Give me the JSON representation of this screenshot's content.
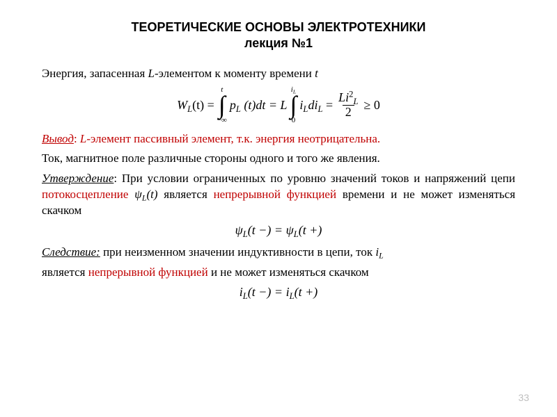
{
  "title": {
    "line1": "ТЕОРЕТИЧЕСКИЕ ОСНОВЫ ЭЛЕКТРОТЕХНИКИ",
    "line2": "лекция №1"
  },
  "p1_pre": "Энергия, запасенная ",
  "p1_L": "L",
  "p1_post": "-элементом к моменту  времени ",
  "p1_t": "t",
  "eq1": {
    "lhs": "W",
    "lhs_sub": "L",
    "arg": "(t) = ",
    "int1_top": "t",
    "int1_bot": "−∞",
    "int1_body_a": "p",
    "int1_body_sub": "L",
    "int1_body_b": " (t)dt = L",
    "int2_top_a": "i",
    "int2_top_sub": "L",
    "int2_bot": "0",
    "int2_body_a": "i",
    "int2_body_sub": "L",
    "int2_body_b": "di",
    "int2_body_sub2": "L",
    "eq": " = ",
    "frac_num_a": "Li",
    "frac_num_sup": "2",
    "frac_num_sub": "L",
    "frac_den": "2",
    "tail": " ≥ 0"
  },
  "p2_vyvod": "Вывод",
  "p2_sep": ": ",
  "p2_L": "L",
  "p2_rest": "-элемент пассивный элемент, т.к. энергия неотрицательна.",
  "p3": "Ток, магнитное поле    различные стороны одного и того же явления.",
  "p4_head": "Утверждение",
  "p4_a": ": При условии ограниченных по уровню значений токов и напряжений цепи ",
  "p4_red1": "потокосцепление",
  "p4_b": "  ",
  "p4_psi_a": "ψ",
  "p4_psi_sub": "L",
  "p4_psi_b": "(t)",
  "p4_c": "  является ",
  "p4_red2": "непрерывной функцией",
  "p4_d": " времени и не может изменяться скачком",
  "eq2_a": "ψ",
  "eq2_sub1": "L",
  "eq2_b": "(t −) = ψ",
  "eq2_sub2": "L",
  "eq2_c": "(t +)",
  "p5_head": "Следствие:",
  "p5_a": "  при неизменном значении индуктивности в цепи, ток  ",
  "p5_iL_a": "i",
  "p5_iL_sub": "L",
  "p6_a": "является ",
  "p6_red": "непрерывной функцией",
  "p6_b": " и не может изменяться скачком",
  "eq3_a": "i",
  "eq3_sub1": "L",
  "eq3_b": "(t −) = i",
  "eq3_sub2": "L",
  "eq3_c": "(t +)",
  "page": "33",
  "colors": {
    "text": "#000000",
    "red": "#c00000",
    "page_num": "#bfbfbf",
    "background": "#ffffff"
  }
}
